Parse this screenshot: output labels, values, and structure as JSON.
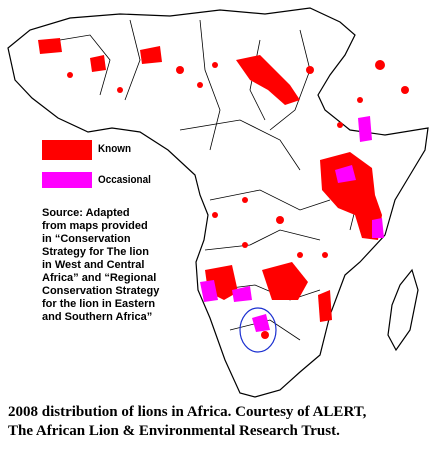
{
  "legend": {
    "known_label": "Known",
    "known_color": "#ff0000",
    "occasional_label": "Occasional",
    "occasional_color": "#ff00ff"
  },
  "source_note": "Source:  Adapted\nfrom maps provided\nin “Conservation\nStrategy for The lion\nin West and Central\nAfrica” and “Regional\nConservation Strategy\nfor the lion in Eastern\nand Southern Africa”",
  "caption": "2008 distribution of lions in Africa. Courtesy of ALERT,\nThe African Lion & Environmental Research Trust."
}
